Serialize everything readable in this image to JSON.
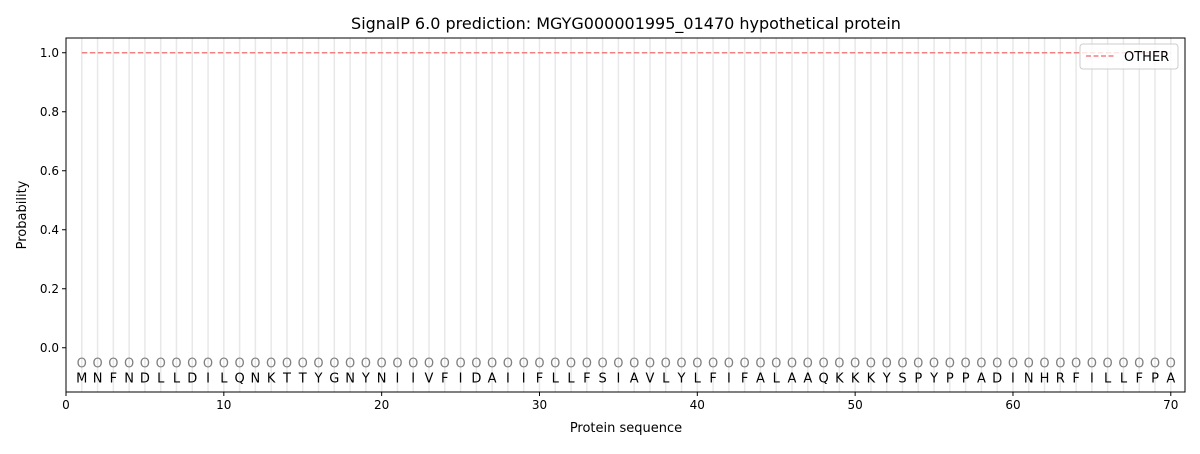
{
  "chart_data": {
    "type": "line",
    "title": "SignalP 6.0 prediction: MGYG000001995_01470 hypothetical protein",
    "xlabel": "Protein sequence",
    "ylabel": "Probability",
    "xlim": [
      0,
      70.9
    ],
    "ylim": [
      -0.15,
      1.05
    ],
    "xticks": [
      0,
      10,
      20,
      30,
      40,
      50,
      60,
      70
    ],
    "yticks": [
      0.0,
      0.2,
      0.4,
      0.6,
      0.8,
      1.0
    ],
    "ytick_labels": [
      "0.0",
      "0.2",
      "0.4",
      "0.6",
      "0.8",
      "1.0"
    ],
    "grid": "vertical at each residue",
    "legend_placement": "top-right",
    "sequence": [
      "M",
      "N",
      "F",
      "N",
      "D",
      "L",
      "L",
      "D",
      "I",
      "L",
      "Q",
      "N",
      "K",
      "T",
      "T",
      "Y",
      "G",
      "N",
      "Y",
      "N",
      "I",
      "I",
      "V",
      "F",
      "I",
      "D",
      "A",
      "I",
      "I",
      "F",
      "L",
      "L",
      "F",
      "S",
      "I",
      "A",
      "V",
      "L",
      "Y",
      "L",
      "F",
      "I",
      "F",
      "A",
      "L",
      "A",
      "A",
      "Q",
      "K",
      "K",
      "K",
      "Y",
      "S",
      "P",
      "Y",
      "P",
      "P",
      "A",
      "D",
      "I",
      "N",
      "H",
      "R",
      "F",
      "I",
      "L",
      "L",
      "F",
      "P",
      "A"
    ],
    "region_label": "O",
    "series": [
      {
        "name": "OTHER",
        "color": "#f08080",
        "style": "dashed",
        "x_start": 1,
        "x_end": 70,
        "value": 1.0
      }
    ]
  }
}
